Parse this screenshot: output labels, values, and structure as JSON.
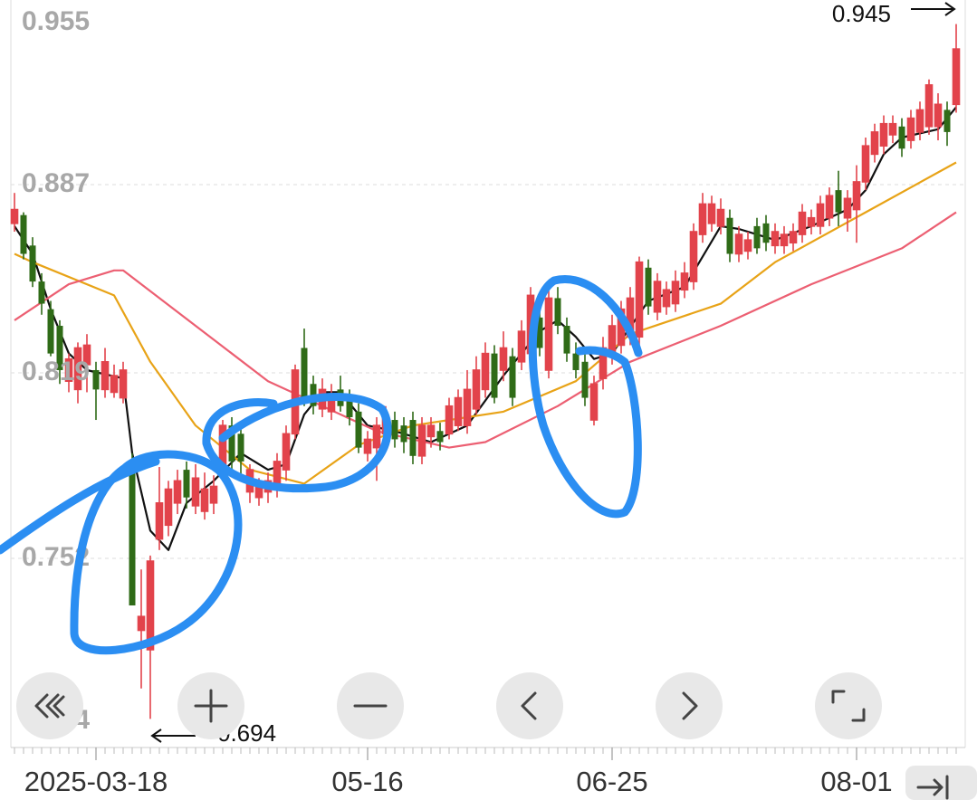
{
  "chart_data": {
    "type": "candlestick",
    "ylim": [
      0.684,
      0.955
    ],
    "yticks": [
      0.955,
      0.887,
      0.819,
      0.752,
      0.684
    ],
    "grid": true,
    "up_color": "#e2434b",
    "down_color": "#2f6b17",
    "high_marker": 0.945,
    "low_marker": 0.694,
    "categories": [
      null,
      null,
      null,
      null,
      null,
      null,
      null,
      null,
      null,
      "2025-03-18",
      null,
      null,
      null,
      null,
      null,
      null,
      null,
      null,
      null,
      null,
      null,
      null,
      null,
      null,
      null,
      null,
      null,
      null,
      null,
      null,
      null,
      null,
      null,
      null,
      null,
      null,
      null,
      null,
      null,
      "05-16",
      null,
      null,
      null,
      null,
      null,
      null,
      null,
      null,
      null,
      null,
      null,
      null,
      null,
      null,
      null,
      null,
      null,
      null,
      null,
      null,
      null,
      null,
      null,
      null,
      null,
      null,
      "06-25",
      null,
      null,
      null,
      null,
      null,
      null,
      null,
      null,
      null,
      null,
      null,
      null,
      null,
      null,
      null,
      null,
      null,
      null,
      null,
      null,
      null,
      null,
      null,
      null,
      null,
      null,
      "08-01",
      null,
      null,
      null,
      null,
      null,
      null,
      null,
      null,
      null,
      null,
      null
    ],
    "candles": [
      [
        0.873,
        0.884,
        0.87,
        0.878
      ],
      [
        0.876,
        0.877,
        0.86,
        0.862
      ],
      [
        0.865,
        0.868,
        0.85,
        0.852
      ],
      [
        0.852,
        0.855,
        0.84,
        0.844
      ],
      [
        0.842,
        0.845,
        0.825,
        0.826
      ],
      [
        0.836,
        0.838,
        0.815,
        0.82
      ],
      [
        0.816,
        0.826,
        0.812,
        0.824
      ],
      [
        0.813,
        0.83,
        0.808,
        0.828
      ],
      [
        0.822,
        0.833,
        0.812,
        0.829
      ],
      [
        0.82,
        0.823,
        0.802,
        0.813
      ],
      [
        0.813,
        0.828,
        0.81,
        0.823
      ],
      [
        0.812,
        0.822,
        0.81,
        0.818
      ],
      [
        0.81,
        0.823,
        0.808,
        0.82
      ],
      [
        0.787,
        0.79,
        0.735,
        0.735
      ],
      [
        0.726,
        0.748,
        0.705,
        0.731
      ],
      [
        0.719,
        0.753,
        0.694,
        0.751
      ],
      [
        0.759,
        0.785,
        0.755,
        0.772
      ],
      [
        0.764,
        0.78,
        0.76,
        0.777
      ],
      [
        0.772,
        0.784,
        0.768,
        0.78
      ],
      [
        0.784,
        0.787,
        0.77,
        0.774
      ],
      [
        0.771,
        0.786,
        0.768,
        0.781
      ],
      [
        0.769,
        0.783,
        0.766,
        0.777
      ],
      [
        0.772,
        0.782,
        0.768,
        0.778
      ],
      [
        0.784,
        0.802,
        0.78,
        0.8
      ],
      [
        0.8,
        0.803,
        0.783,
        0.787
      ],
      [
        0.797,
        0.8,
        0.78,
        0.787
      ],
      [
        0.776,
        0.786,
        0.772,
        0.784
      ],
      [
        0.774,
        0.781,
        0.771,
        0.778
      ],
      [
        0.776,
        0.783,
        0.772,
        0.78
      ],
      [
        0.777,
        0.79,
        0.774,
        0.787
      ],
      [
        0.784,
        0.8,
        0.78,
        0.797
      ],
      [
        0.797,
        0.822,
        0.795,
        0.82
      ],
      [
        0.828,
        0.835,
        0.807,
        0.81
      ],
      [
        0.815,
        0.818,
        0.804,
        0.807
      ],
      [
        0.806,
        0.817,
        0.803,
        0.813
      ],
      [
        0.805,
        0.815,
        0.802,
        0.811
      ],
      [
        0.813,
        0.818,
        0.805,
        0.807
      ],
      [
        0.81,
        0.813,
        0.8,
        0.803
      ],
      [
        0.805,
        0.808,
        0.79,
        0.792
      ],
      [
        0.79,
        0.798,
        0.787,
        0.795
      ],
      [
        0.792,
        0.803,
        0.78,
        0.8
      ],
      [
        0.797,
        0.807,
        0.794,
        0.803
      ],
      [
        0.802,
        0.805,
        0.792,
        0.795
      ],
      [
        0.8,
        0.803,
        0.79,
        0.794
      ],
      [
        0.802,
        0.805,
        0.786,
        0.789
      ],
      [
        0.789,
        0.803,
        0.786,
        0.8
      ],
      [
        0.796,
        0.803,
        0.792,
        0.8
      ],
      [
        0.798,
        0.801,
        0.791,
        0.794
      ],
      [
        0.797,
        0.81,
        0.795,
        0.807
      ],
      [
        0.8,
        0.813,
        0.798,
        0.81
      ],
      [
        0.8,
        0.82,
        0.797,
        0.813
      ],
      [
        0.806,
        0.825,
        0.804,
        0.82
      ],
      [
        0.813,
        0.83,
        0.81,
        0.826
      ],
      [
        0.826,
        0.829,
        0.808,
        0.81
      ],
      [
        0.82,
        0.834,
        0.816,
        0.828
      ],
      [
        0.825,
        0.828,
        0.807,
        0.81
      ],
      [
        0.823,
        0.838,
        0.82,
        0.834
      ],
      [
        0.826,
        0.85,
        0.823,
        0.847
      ],
      [
        0.839,
        0.842,
        0.825,
        0.828
      ],
      [
        0.82,
        0.849,
        0.817,
        0.846
      ],
      [
        0.846,
        0.85,
        0.833,
        0.836
      ],
      [
        0.836,
        0.839,
        0.823,
        0.826
      ],
      [
        0.826,
        0.83,
        0.817,
        0.82
      ],
      [
        0.823,
        0.826,
        0.807,
        0.81
      ],
      [
        0.802,
        0.818,
        0.8,
        0.815
      ],
      [
        0.817,
        0.832,
        0.813,
        0.828
      ],
      [
        0.825,
        0.84,
        0.822,
        0.836
      ],
      [
        0.829,
        0.845,
        0.826,
        0.842
      ],
      [
        0.832,
        0.85,
        0.829,
        0.846
      ],
      [
        0.832,
        0.861,
        0.829,
        0.859
      ],
      [
        0.857,
        0.86,
        0.84,
        0.843
      ],
      [
        0.841,
        0.855,
        0.838,
        0.852
      ],
      [
        0.843,
        0.852,
        0.84,
        0.849
      ],
      [
        0.844,
        0.856,
        0.841,
        0.852
      ],
      [
        0.849,
        0.859,
        0.846,
        0.855
      ],
      [
        0.852,
        0.873,
        0.849,
        0.87
      ],
      [
        0.869,
        0.884,
        0.866,
        0.88
      ],
      [
        0.873,
        0.883,
        0.87,
        0.88
      ],
      [
        0.872,
        0.882,
        0.869,
        0.878
      ],
      [
        0.875,
        0.878,
        0.859,
        0.862
      ],
      [
        0.862,
        0.872,
        0.859,
        0.869
      ],
      [
        0.863,
        0.87,
        0.86,
        0.867
      ],
      [
        0.872,
        0.875,
        0.862,
        0.864
      ],
      [
        0.873,
        0.876,
        0.863,
        0.866
      ],
      [
        0.865,
        0.873,
        0.862,
        0.87
      ],
      [
        0.865,
        0.872,
        0.862,
        0.869
      ],
      [
        0.866,
        0.873,
        0.863,
        0.87
      ],
      [
        0.869,
        0.88,
        0.866,
        0.877
      ],
      [
        0.872,
        0.878,
        0.869,
        0.875
      ],
      [
        0.872,
        0.883,
        0.869,
        0.88
      ],
      [
        0.875,
        0.886,
        0.872,
        0.883
      ],
      [
        0.885,
        0.892,
        0.872,
        0.877
      ],
      [
        0.875,
        0.885,
        0.87,
        0.882
      ],
      [
        0.878,
        0.894,
        0.866,
        0.888
      ],
      [
        0.888,
        0.904,
        0.885,
        0.901
      ],
      [
        0.898,
        0.909,
        0.895,
        0.906
      ],
      [
        0.901,
        0.912,
        0.898,
        0.909
      ],
      [
        0.905,
        0.912,
        0.902,
        0.909
      ],
      [
        0.908,
        0.911,
        0.897,
        0.9
      ],
      [
        0.903,
        0.914,
        0.9,
        0.911
      ],
      [
        0.906,
        0.917,
        0.903,
        0.914
      ],
      [
        0.908,
        0.925,
        0.905,
        0.923
      ],
      [
        0.908,
        0.92,
        0.903,
        0.916
      ],
      [
        0.914,
        0.917,
        0.901,
        0.906
      ],
      [
        0.916,
        0.945,
        0.913,
        0.936
      ]
    ],
    "lines": [
      {
        "color": "#111111",
        "x": [
          0,
          2,
          4,
          6,
          8,
          12,
          13,
          15,
          17,
          19,
          22,
          25,
          28,
          30,
          32,
          34,
          36,
          39,
          42,
          46,
          50,
          54,
          58,
          60,
          62,
          64,
          66,
          70,
          74,
          78,
          80,
          84,
          88,
          92,
          94,
          96,
          98,
          102,
          104
        ],
        "values": [
          0.872,
          0.862,
          0.842,
          0.826,
          0.82,
          0.817,
          0.79,
          0.762,
          0.755,
          0.772,
          0.78,
          0.79,
          0.784,
          0.786,
          0.804,
          0.812,
          0.812,
          0.8,
          0.798,
          0.794,
          0.8,
          0.818,
          0.834,
          0.838,
          0.832,
          0.824,
          0.826,
          0.845,
          0.85,
          0.872,
          0.871,
          0.867,
          0.872,
          0.878,
          0.885,
          0.898,
          0.904,
          0.907,
          0.915
        ]
      },
      {
        "color": "#e8a317",
        "x": [
          0,
          2,
          11,
          15,
          20,
          26,
          32,
          38,
          44,
          54,
          62,
          68,
          78,
          84,
          94,
          104
        ],
        "values": [
          0.862,
          0.859,
          0.847,
          0.823,
          0.8,
          0.784,
          0.779,
          0.793,
          0.8,
          0.805,
          0.816,
          0.833,
          0.844,
          0.859,
          0.877,
          0.895
        ]
      },
      {
        "color": "#ec5f72",
        "x": [
          0,
          6,
          11,
          12,
          20,
          28,
          40,
          48,
          52,
          60,
          68,
          78,
          88,
          98,
          104
        ],
        "values": [
          0.838,
          0.851,
          0.856,
          0.856,
          0.836,
          0.816,
          0.798,
          0.792,
          0.794,
          0.807,
          0.823,
          0.836,
          0.851,
          0.864,
          0.877
        ]
      }
    ]
  }
}
